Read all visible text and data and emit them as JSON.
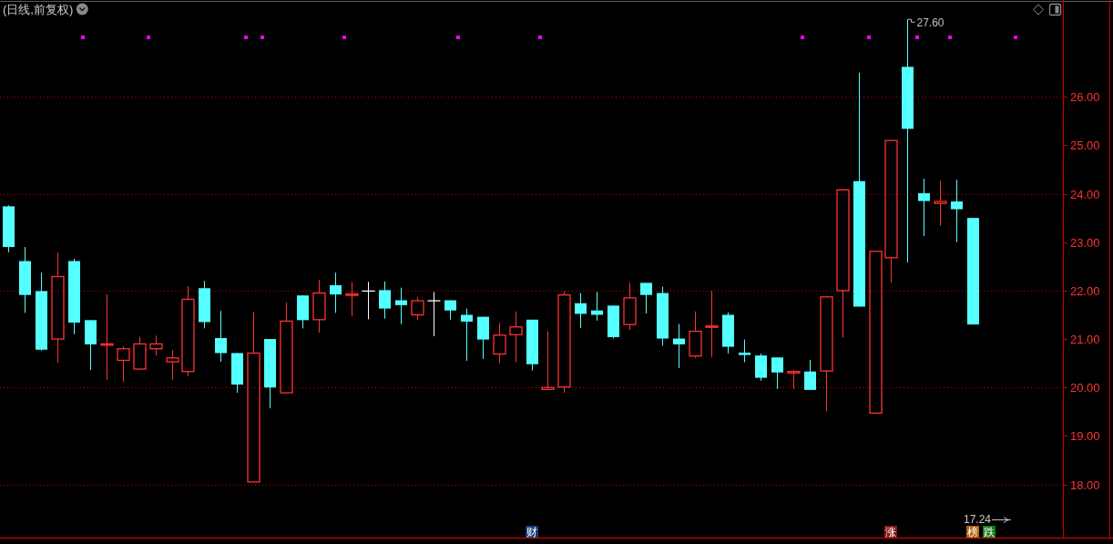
{
  "chart_data": {
    "type": "candlestick",
    "title": "(日线,前复权)",
    "categories": [
      null,
      null,
      null,
      null,
      null,
      null,
      null,
      null,
      null,
      null,
      null,
      null,
      null,
      null,
      null,
      null,
      null,
      null,
      null,
      null,
      null,
      null,
      null,
      null,
      null,
      null,
      null,
      null,
      null,
      null,
      null,
      null,
      null,
      null,
      null,
      null,
      null,
      null,
      null,
      null,
      null,
      null,
      null,
      null,
      null,
      null,
      null,
      null,
      null,
      null,
      null,
      null,
      null,
      null,
      null,
      null,
      null,
      null,
      null,
      null,
      null,
      null,
      null,
      null,
      null
    ],
    "ohlc": [
      [
        23.74,
        23.76,
        22.79,
        22.9
      ],
      [
        22.61,
        22.9,
        21.54,
        21.91
      ],
      [
        21.99,
        22.37,
        20.76,
        20.78
      ],
      [
        21.0,
        22.78,
        20.51,
        22.29
      ],
      [
        22.61,
        22.66,
        21.1,
        21.34
      ],
      [
        21.39,
        21.39,
        20.36,
        20.89
      ],
      [
        20.88,
        21.92,
        20.16,
        20.9
      ],
      [
        20.56,
        20.85,
        20.12,
        20.8
      ],
      [
        20.38,
        21.05,
        20.38,
        20.9
      ],
      [
        20.8,
        21.07,
        20.66,
        20.9
      ],
      [
        20.53,
        20.77,
        20.16,
        20.61
      ],
      [
        20.33,
        22.09,
        20.23,
        21.82
      ],
      [
        22.05,
        22.2,
        21.22,
        21.35
      ],
      [
        21.02,
        21.58,
        20.53,
        20.71
      ],
      [
        20.71,
        20.71,
        19.89,
        20.06
      ],
      [
        18.05,
        21.56,
        18.05,
        20.71
      ],
      [
        21.0,
        21.0,
        19.57,
        20.0
      ],
      [
        19.89,
        21.75,
        19.89,
        21.37
      ],
      [
        21.9,
        21.9,
        21.22,
        21.39
      ],
      [
        21.4,
        22.22,
        21.13,
        21.95
      ],
      [
        22.11,
        22.37,
        21.54,
        21.92
      ],
      [
        21.91,
        22.18,
        21.47,
        21.93
      ],
      [
        21.99,
        22.18,
        21.41,
        21.99
      ],
      [
        22.01,
        22.19,
        21.42,
        21.63
      ],
      [
        21.8,
        22.06,
        21.31,
        21.7
      ],
      [
        21.5,
        21.87,
        21.4,
        21.79
      ],
      [
        21.79,
        21.97,
        21.06,
        21.79
      ],
      [
        21.8,
        21.8,
        21.4,
        21.59
      ],
      [
        21.5,
        21.63,
        20.55,
        21.36
      ],
      [
        21.46,
        21.46,
        20.59,
        20.99
      ],
      [
        20.69,
        21.33,
        20.5,
        21.08
      ],
      [
        21.09,
        21.57,
        20.52,
        21.25
      ],
      [
        21.4,
        21.4,
        20.35,
        20.48
      ],
      [
        19.96,
        21.16,
        19.96,
        20.0
      ],
      [
        20.01,
        21.98,
        19.89,
        21.91
      ],
      [
        21.74,
        21.95,
        21.23,
        21.52
      ],
      [
        21.59,
        21.97,
        21.38,
        21.5
      ],
      [
        21.69,
        21.69,
        21.01,
        21.04
      ],
      [
        21.3,
        22.16,
        21.19,
        21.85
      ],
      [
        22.16,
        22.16,
        21.53,
        21.91
      ],
      [
        21.95,
        22.08,
        20.86,
        21.01
      ],
      [
        21.01,
        21.31,
        20.4,
        20.89
      ],
      [
        20.65,
        21.57,
        20.61,
        21.16
      ],
      [
        21.26,
        21.99,
        20.63,
        21.27
      ],
      [
        21.5,
        21.55,
        20.7,
        20.84
      ],
      [
        20.72,
        20.99,
        20.52,
        20.67
      ],
      [
        20.66,
        20.7,
        20.14,
        20.2
      ],
      [
        20.62,
        20.62,
        19.97,
        20.31
      ],
      [
        20.3,
        20.36,
        19.97,
        20.33
      ],
      [
        20.33,
        20.57,
        19.95,
        19.95
      ],
      [
        20.34,
        21.89,
        19.51,
        21.87
      ],
      [
        22.0,
        24.08,
        21.03,
        24.08
      ],
      [
        24.26,
        26.5,
        21.67,
        21.67
      ],
      [
        19.47,
        22.81,
        19.47,
        22.81
      ],
      [
        22.68,
        25.1,
        22.16,
        25.1
      ],
      [
        26.62,
        27.6,
        22.58,
        25.34
      ],
      [
        24.01,
        24.31,
        23.13,
        23.85
      ],
      [
        23.8,
        24.27,
        23.34,
        23.84
      ],
      [
        23.84,
        24.29,
        23.0,
        23.68
      ],
      [
        23.5,
        23.5,
        21.3,
        21.3
      ],
      null,
      null,
      null,
      null,
      null
    ],
    "colors": [
      "#54ffff",
      "#54ffff",
      "#54ffff",
      "#ff3232",
      "#54ffff",
      "#54ffff",
      "#ff3232",
      "#ff3232",
      "#ff3232",
      "#ff3232",
      "#ff3232",
      "#ff3232",
      "#54ffff",
      "#54ffff",
      "#54ffff",
      "#ff3232",
      "#54ffff",
      "#ff3232",
      "#54ffff",
      "#ff3232",
      "#54ffff",
      "#ff3232",
      "#ffffff",
      "#54ffff",
      "#54ffff",
      "#ff3232",
      "#ffffff",
      "#54ffff",
      "#54ffff",
      "#54ffff",
      "#ff3232",
      "#ff3232",
      "#54ffff",
      "#ff3232",
      "#ff3232",
      "#54ffff",
      "#54ffff",
      "#54ffff",
      "#ff3232",
      "#54ffff",
      "#54ffff",
      "#54ffff",
      "#ff3232",
      "#ff3232",
      "#54ffff",
      "#54ffff",
      "#54ffff",
      "#54ffff",
      "#ff3232",
      "#54ffff",
      "#ff3232",
      "#ff3232",
      "#54ffff",
      "#ff3232",
      "#ff3232",
      "#54ffff",
      "#54ffff",
      "#ff3232",
      "#54ffff",
      "#54ffff",
      null,
      null,
      null,
      null,
      null
    ],
    "ylim": [
      16.9,
      28.0
    ],
    "yticks": [
      {
        "value": 18,
        "label": "18.00"
      },
      {
        "value": 19,
        "label": "19.00"
      },
      {
        "value": 20,
        "label": "20.00"
      },
      {
        "value": 21,
        "label": "21.00"
      },
      {
        "value": 22,
        "label": "22.00"
      },
      {
        "value": 23,
        "label": "23.00"
      },
      {
        "value": 24,
        "label": "24.00"
      },
      {
        "value": 25,
        "label": "25.00"
      },
      {
        "value": 26,
        "label": "26.00"
      }
    ],
    "tick_labels": "y",
    "ref_lines": [
      {
        "axis": "y",
        "value": 18,
        "color": "#c00000",
        "line_style": "dotted"
      },
      {
        "axis": "y",
        "value": 20,
        "color": "#c00000",
        "line_style": "dotted"
      },
      {
        "axis": "y",
        "value": 22,
        "color": "#c00000",
        "line_style": "dotted"
      },
      {
        "axis": "y",
        "value": 24,
        "color": "#c00000",
        "line_style": "dotted"
      },
      {
        "axis": "y",
        "value": 26,
        "color": "#c00000",
        "line_style": "dotted"
      }
    ],
    "annotations": [
      "27.60",
      "17.24",
      "财",
      "涨",
      "榜",
      "跌"
    ]
  }
}
